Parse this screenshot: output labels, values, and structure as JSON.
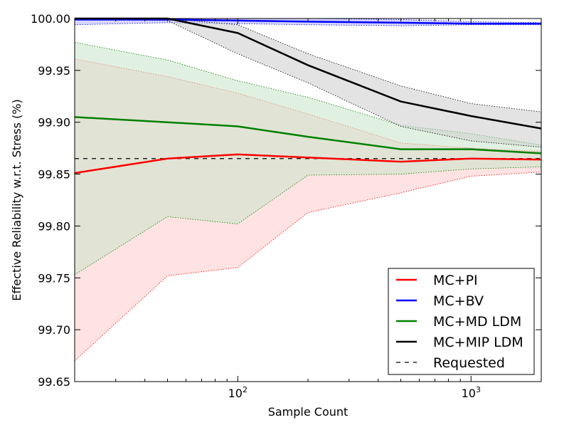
{
  "chart_data": {
    "type": "line",
    "title": "",
    "xlabel": "Sample Count",
    "ylabel": "Effective Reliability w.r.t. Stress (%)",
    "xscale": "log",
    "xlim": [
      20,
      2000
    ],
    "ylim": [
      99.65,
      100.0
    ],
    "grid": false,
    "legend_position": "bottom-right",
    "y_ticks": [
      "99.65",
      "99.70",
      "99.75",
      "99.80",
      "99.85",
      "99.90",
      "99.95",
      "100.00"
    ],
    "x_ticks": [
      {
        "base": "10",
        "exp": "2",
        "value": 100
      },
      {
        "base": "10",
        "exp": "3",
        "value": 1000
      }
    ],
    "series": [
      {
        "name": "MC+PI",
        "color": "#ff0000",
        "fill": "#ffcccc",
        "x": [
          20,
          50,
          100,
          200,
          500,
          1000,
          2000
        ],
        "y": [
          99.851,
          99.865,
          99.869,
          99.866,
          99.862,
          99.865,
          99.864
        ],
        "lower": [
          99.67,
          99.752,
          99.76,
          99.813,
          99.832,
          99.848,
          99.852
        ],
        "upper": [
          99.961,
          99.944,
          99.928,
          99.908,
          99.88,
          99.875,
          99.872
        ]
      },
      {
        "name": "MC+BV",
        "color": "#0000ff",
        "fill": "#b3b3ff",
        "x": [
          20,
          50,
          100,
          200,
          500,
          1000,
          2000
        ],
        "y": [
          99.999,
          99.999,
          99.998,
          99.997,
          99.996,
          99.995,
          99.995
        ],
        "lower": [
          99.994,
          99.996,
          99.995,
          99.994,
          99.993,
          99.994,
          99.994
        ],
        "upper": [
          100.0,
          100.0,
          100.0,
          100.0,
          99.999,
          99.997,
          99.996
        ]
      },
      {
        "name": "MC+MD LDM",
        "color": "#008000",
        "fill": "#c8e6c8",
        "x": [
          20,
          50,
          100,
          200,
          500,
          1000,
          2000
        ],
        "y": [
          99.905,
          99.9,
          99.896,
          99.886,
          99.874,
          99.874,
          99.87
        ],
        "lower": [
          99.753,
          99.809,
          99.802,
          99.849,
          99.85,
          99.855,
          99.857
        ],
        "upper": [
          99.977,
          99.96,
          99.94,
          99.924,
          99.897,
          99.889,
          99.878
        ]
      },
      {
        "name": "MC+MIP LDM",
        "color": "#000000",
        "fill": "#cccccc",
        "x": [
          20,
          50,
          100,
          200,
          500,
          1000,
          2000
        ],
        "y": [
          100.0,
          100.0,
          99.986,
          99.955,
          99.92,
          99.906,
          99.894
        ],
        "lower": [
          99.999,
          99.998,
          99.966,
          99.938,
          99.896,
          99.882,
          99.876
        ],
        "upper": [
          100.0,
          100.0,
          99.994,
          99.966,
          99.935,
          99.918,
          99.91
        ]
      }
    ],
    "reference_line": {
      "name": "Requested",
      "y": 99.865,
      "style": "dashed",
      "color": "#000000"
    }
  }
}
